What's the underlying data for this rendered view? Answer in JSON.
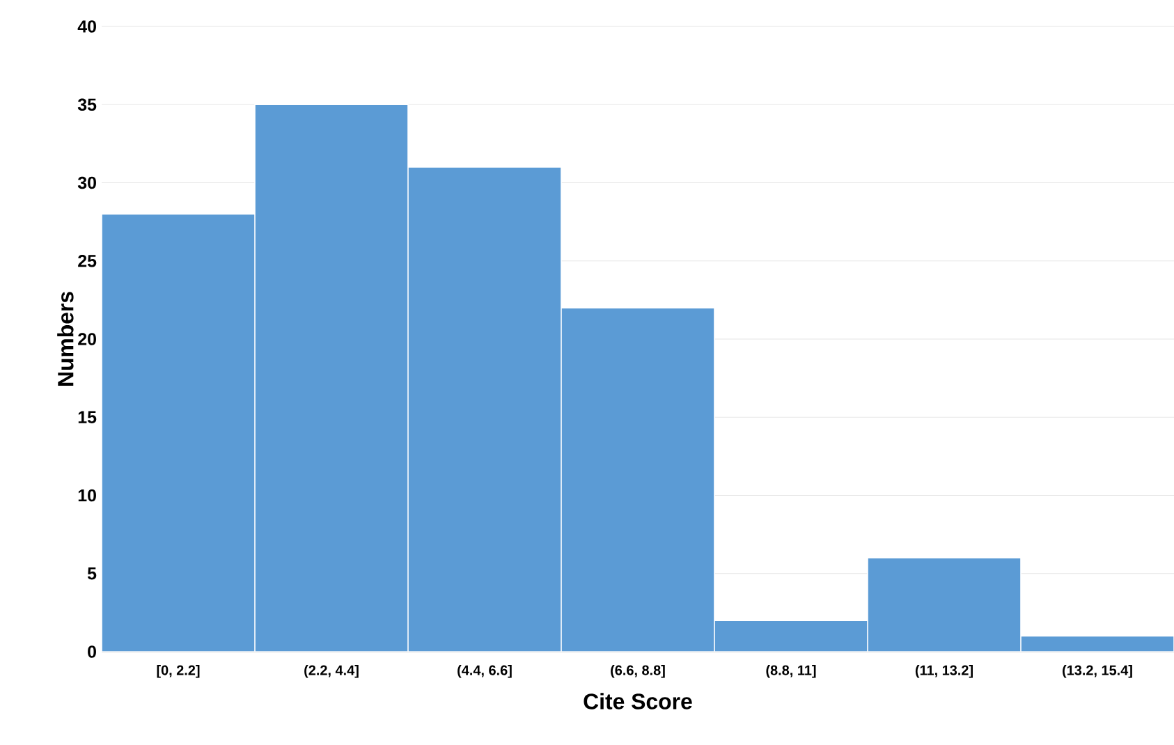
{
  "chart_data": {
    "type": "bar",
    "xlabel": "Cite  Score",
    "ylabel": "Numbers",
    "categories": [
      "[0, 2.2]",
      "(2.2, 4.4]",
      "(4.4, 6.6]",
      "(6.6, 8.8]",
      "(8.8, 11]",
      "(11, 13.2]",
      "(13.2, 15.4]"
    ],
    "values": [
      28,
      35,
      31,
      22,
      2,
      6,
      1
    ],
    "color": "#5b9bd5",
    "ylim": [
      0,
      40
    ],
    "yticks": [
      0,
      5,
      10,
      15,
      20,
      25,
      30,
      35,
      40
    ],
    "grid": "y"
  }
}
